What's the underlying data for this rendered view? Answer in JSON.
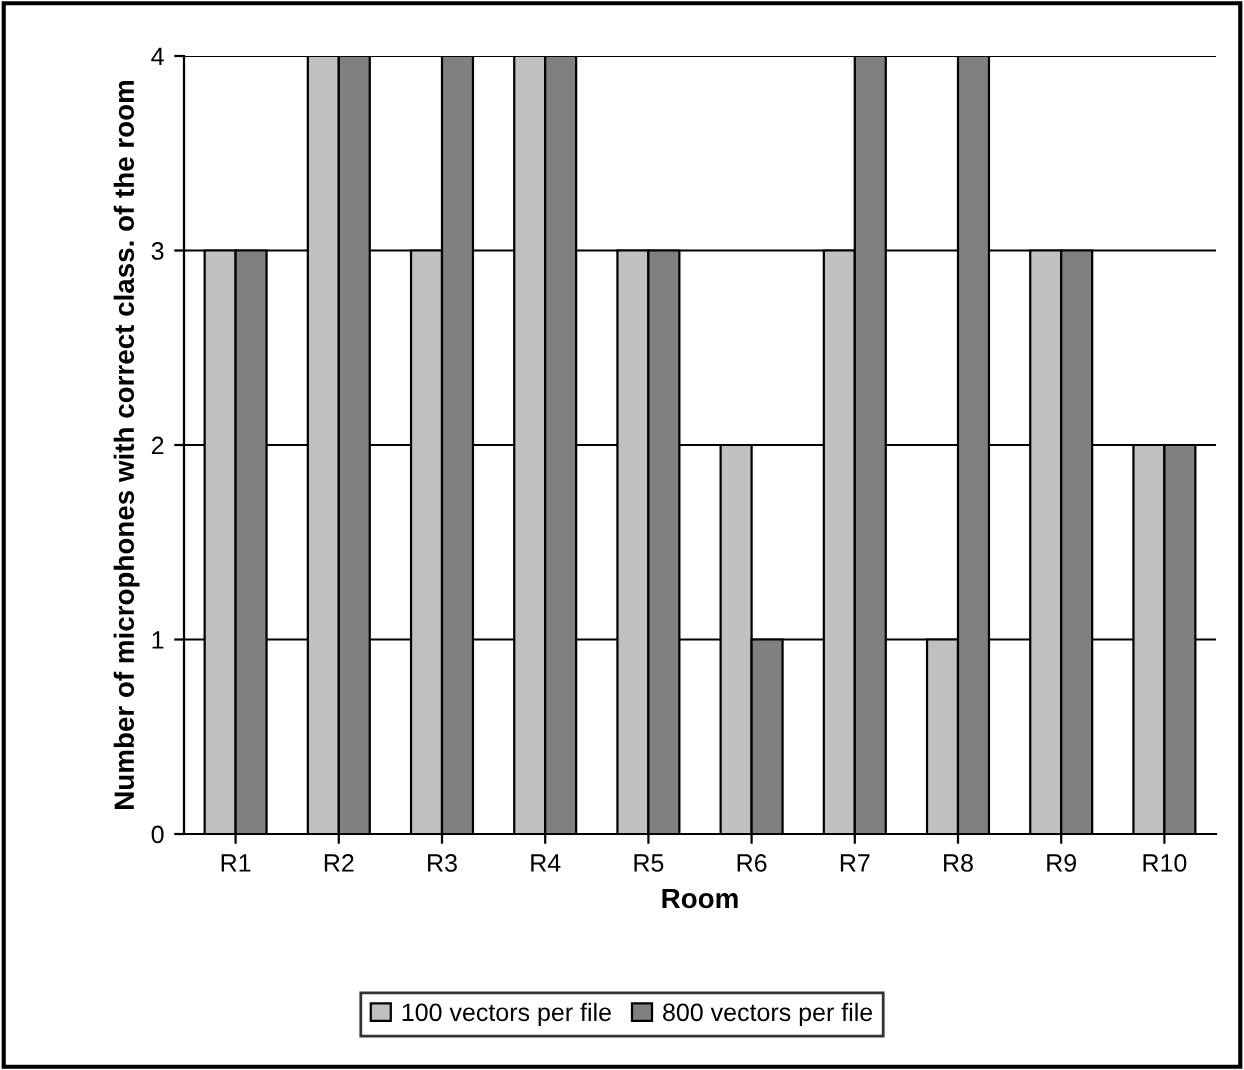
{
  "chart_data": {
    "type": "bar",
    "xlabel": "Room",
    "ylabel": "Number of microphones with correct class. of the room",
    "categories": [
      "R1",
      "R2",
      "R3",
      "R4",
      "R5",
      "R6",
      "R7",
      "R8",
      "R9",
      "R10"
    ],
    "series": [
      {
        "name": "100 vectors per file",
        "color": "#c0c0c0",
        "values": [
          3,
          4,
          3,
          4,
          3,
          2,
          3,
          1,
          3,
          2
        ]
      },
      {
        "name": "800 vectors per file",
        "color": "#808080",
        "values": [
          3,
          4,
          4,
          4,
          3,
          1,
          4,
          4,
          3,
          2
        ]
      }
    ],
    "ylim": [
      0,
      4
    ],
    "yticks": [
      0,
      1,
      2,
      3,
      4
    ],
    "grid": "y",
    "legend": "bottom"
  }
}
